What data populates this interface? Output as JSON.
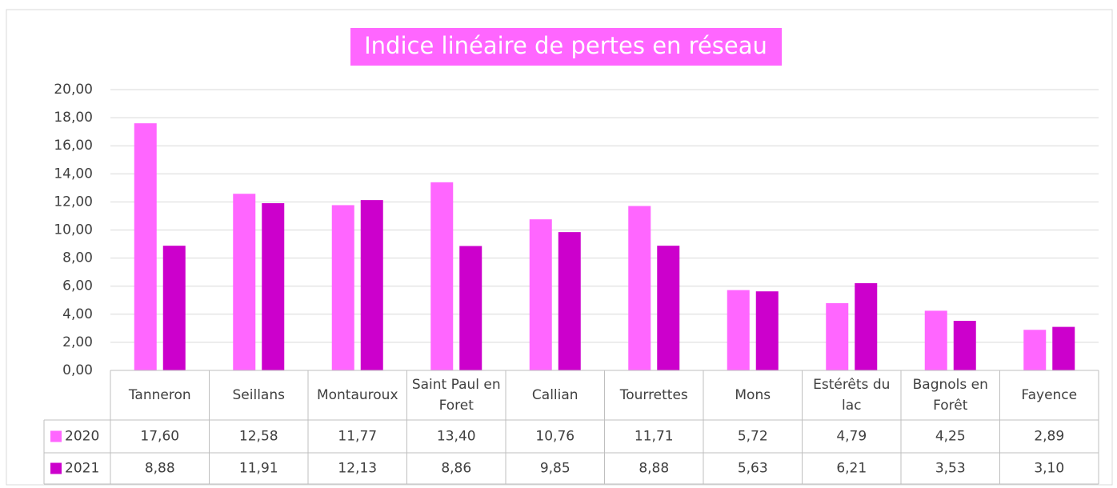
{
  "chart_data": {
    "type": "bar",
    "title": "Indice linéaire de pertes en réseau",
    "categories": [
      "Tanneron",
      "Seillans",
      "Montauroux",
      "Saint Paul en Foret",
      "Callian",
      "Tourrettes",
      "Mons",
      "Estérêts du lac",
      "Bagnols en Forêt",
      "Fayence"
    ],
    "series": [
      {
        "name": "2020",
        "color": "#ff66ff",
        "values": [
          17.6,
          12.58,
          11.77,
          13.4,
          10.76,
          11.71,
          5.72,
          4.79,
          4.25,
          2.89
        ],
        "value_labels": [
          "17,60",
          "12,58",
          "11,77",
          "13,40",
          "10,76",
          "11,71",
          "5,72",
          "4,79",
          "4,25",
          "2,89"
        ]
      },
      {
        "name": "2021",
        "color": "#cc00cc",
        "values": [
          8.88,
          11.91,
          12.13,
          8.86,
          9.85,
          8.88,
          5.63,
          6.21,
          3.53,
          3.1
        ],
        "value_labels": [
          "8,88",
          "11,91",
          "12,13",
          "8,86",
          "9,85",
          "8,88",
          "5,63",
          "6,21",
          "3,53",
          "3,10"
        ]
      }
    ],
    "ylim": [
      0,
      20
    ],
    "yticks": [
      {
        "value": 0,
        "label": "0,00"
      },
      {
        "value": 2,
        "label": "2,00"
      },
      {
        "value": 4,
        "label": "4,00"
      },
      {
        "value": 6,
        "label": "6,00"
      },
      {
        "value": 8,
        "label": "8,00"
      },
      {
        "value": 10,
        "label": "10,00"
      },
      {
        "value": 12,
        "label": "12,00"
      },
      {
        "value": 14,
        "label": "14,00"
      },
      {
        "value": 16,
        "label": "16,00"
      },
      {
        "value": 18,
        "label": "18,00"
      },
      {
        "value": 20,
        "label": "20,00"
      }
    ],
    "grid": true,
    "title_background": "#ff66ff"
  }
}
